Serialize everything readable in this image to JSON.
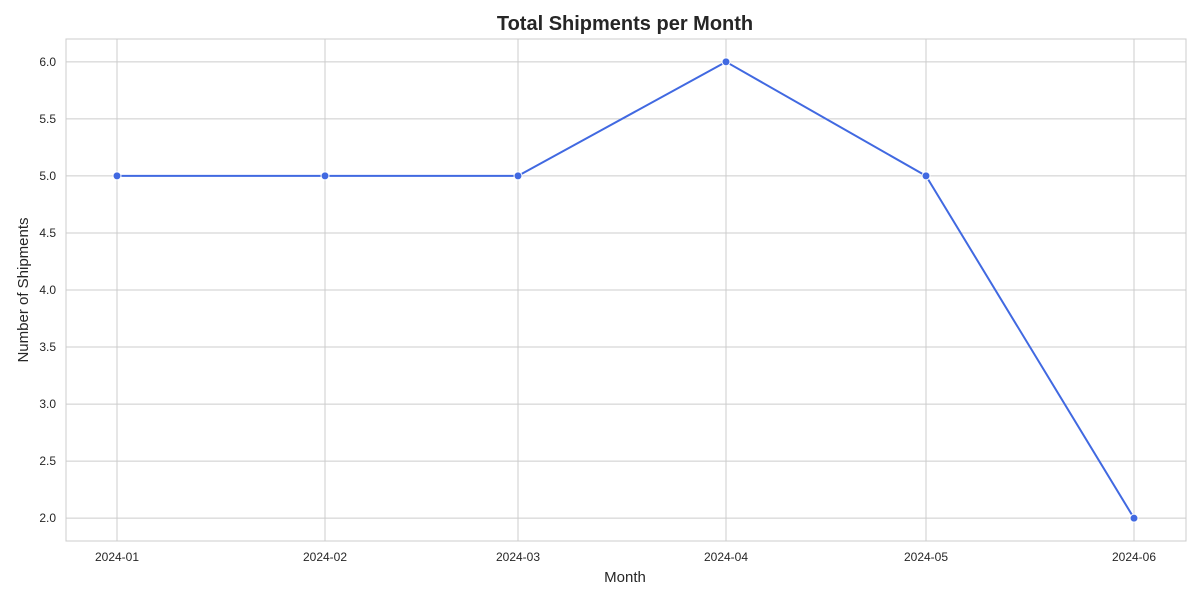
{
  "chart_data": {
    "type": "line",
    "title": "Total Shipments per Month",
    "xlabel": "Month",
    "ylabel": "Number of Shipments",
    "x": [
      "2024-01",
      "2024-02",
      "2024-03",
      "2024-04",
      "2024-05",
      "2024-06"
    ],
    "y_ticks": [
      "2.0",
      "2.5",
      "3.0",
      "3.5",
      "4.0",
      "4.5",
      "5.0",
      "5.5",
      "6.0"
    ],
    "ylim": [
      1.8,
      6.2
    ],
    "grid": true,
    "series": [
      {
        "values": [
          5,
          5,
          5,
          6,
          5,
          2
        ],
        "color": "#4169e1",
        "marker": "circle"
      }
    ]
  }
}
